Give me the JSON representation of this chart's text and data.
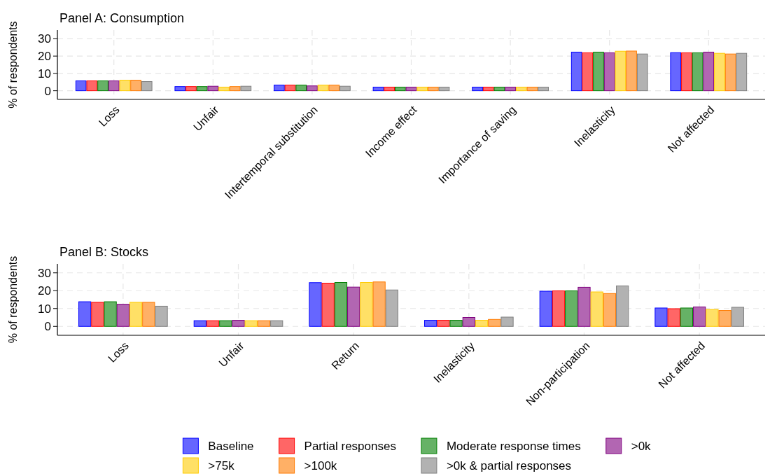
{
  "chart_data": [
    {
      "type": "bar",
      "title": "Panel A: Consumption",
      "ylabel": "% of respondents",
      "categories": [
        "Loss",
        "Unfair",
        "Intertemporal substitution",
        "Income effect",
        "Importance of saving",
        "Inelasticity",
        "Not affected"
      ],
      "series": [
        {
          "name": "Baseline",
          "color": "#6666ff",
          "values": [
            5.7,
            2.4,
            3.3,
            2.1,
            2.1,
            22.3,
            22.0
          ]
        },
        {
          "name": "Partial responses",
          "color": "#ff6666",
          "values": [
            5.7,
            2.4,
            3.3,
            2.1,
            2.1,
            21.9,
            21.9
          ]
        },
        {
          "name": "Moderate response times",
          "color": "#66b266",
          "values": [
            5.7,
            2.4,
            3.3,
            2.1,
            2.1,
            22.3,
            21.9
          ]
        },
        {
          "name": ">0k",
          "color": "#b266b2",
          "values": [
            5.7,
            2.6,
            2.8,
            2.1,
            2.1,
            21.9,
            22.3
          ]
        },
        {
          "name": ">75k",
          "color": "#ffe066",
          "values": [
            6.1,
            2.1,
            3.3,
            2.1,
            2.1,
            22.8,
            21.6
          ]
        },
        {
          "name": ">100k",
          "color": "#ffb066",
          "values": [
            6.1,
            2.4,
            3.3,
            2.1,
            2.1,
            22.9,
            21.2
          ]
        },
        {
          "name": ">0k & partial responses",
          "color": "#b2b2b2",
          "values": [
            5.3,
            2.6,
            2.6,
            2.1,
            2.1,
            21.2,
            21.6
          ]
        }
      ],
      "ylim": [
        -5,
        35
      ],
      "yticks": [
        0,
        10,
        20,
        30
      ],
      "grid": true,
      "legend": "bottom"
    },
    {
      "type": "bar",
      "title": "Panel B: Stocks",
      "ylabel": "% of respondents",
      "categories": [
        "Loss",
        "Unfair",
        "Return",
        "Inelasticity",
        "Non-participation",
        "Not affected"
      ],
      "series": [
        {
          "name": "Baseline",
          "color": "#6666ff",
          "values": [
            13.8,
            3.2,
            24.5,
            3.4,
            19.7,
            10.3
          ]
        },
        {
          "name": "Partial responses",
          "color": "#ff6666",
          "values": [
            13.5,
            3.2,
            24.2,
            3.4,
            19.9,
            9.9
          ]
        },
        {
          "name": "Moderate response times",
          "color": "#66b266",
          "values": [
            13.8,
            3.2,
            24.6,
            3.4,
            19.9,
            10.3
          ]
        },
        {
          "name": ">0k",
          "color": "#b266b2",
          "values": [
            12.4,
            3.4,
            22.0,
            5.0,
            21.9,
            10.9
          ]
        },
        {
          "name": ">75k",
          "color": "#ffe066",
          "values": [
            13.5,
            3.2,
            24.6,
            3.4,
            19.3,
            9.5
          ]
        },
        {
          "name": ">100k",
          "color": "#ffb066",
          "values": [
            13.5,
            3.2,
            24.9,
            3.9,
            18.4,
            8.9
          ]
        },
        {
          "name": ">0k & partial responses",
          "color": "#b2b2b2",
          "values": [
            11.3,
            3.2,
            20.4,
            5.2,
            22.7,
            10.7
          ]
        }
      ],
      "ylim": [
        -5,
        35
      ],
      "yticks": [
        0,
        10,
        20,
        30
      ],
      "grid": true,
      "legend": "bottom"
    }
  ]
}
